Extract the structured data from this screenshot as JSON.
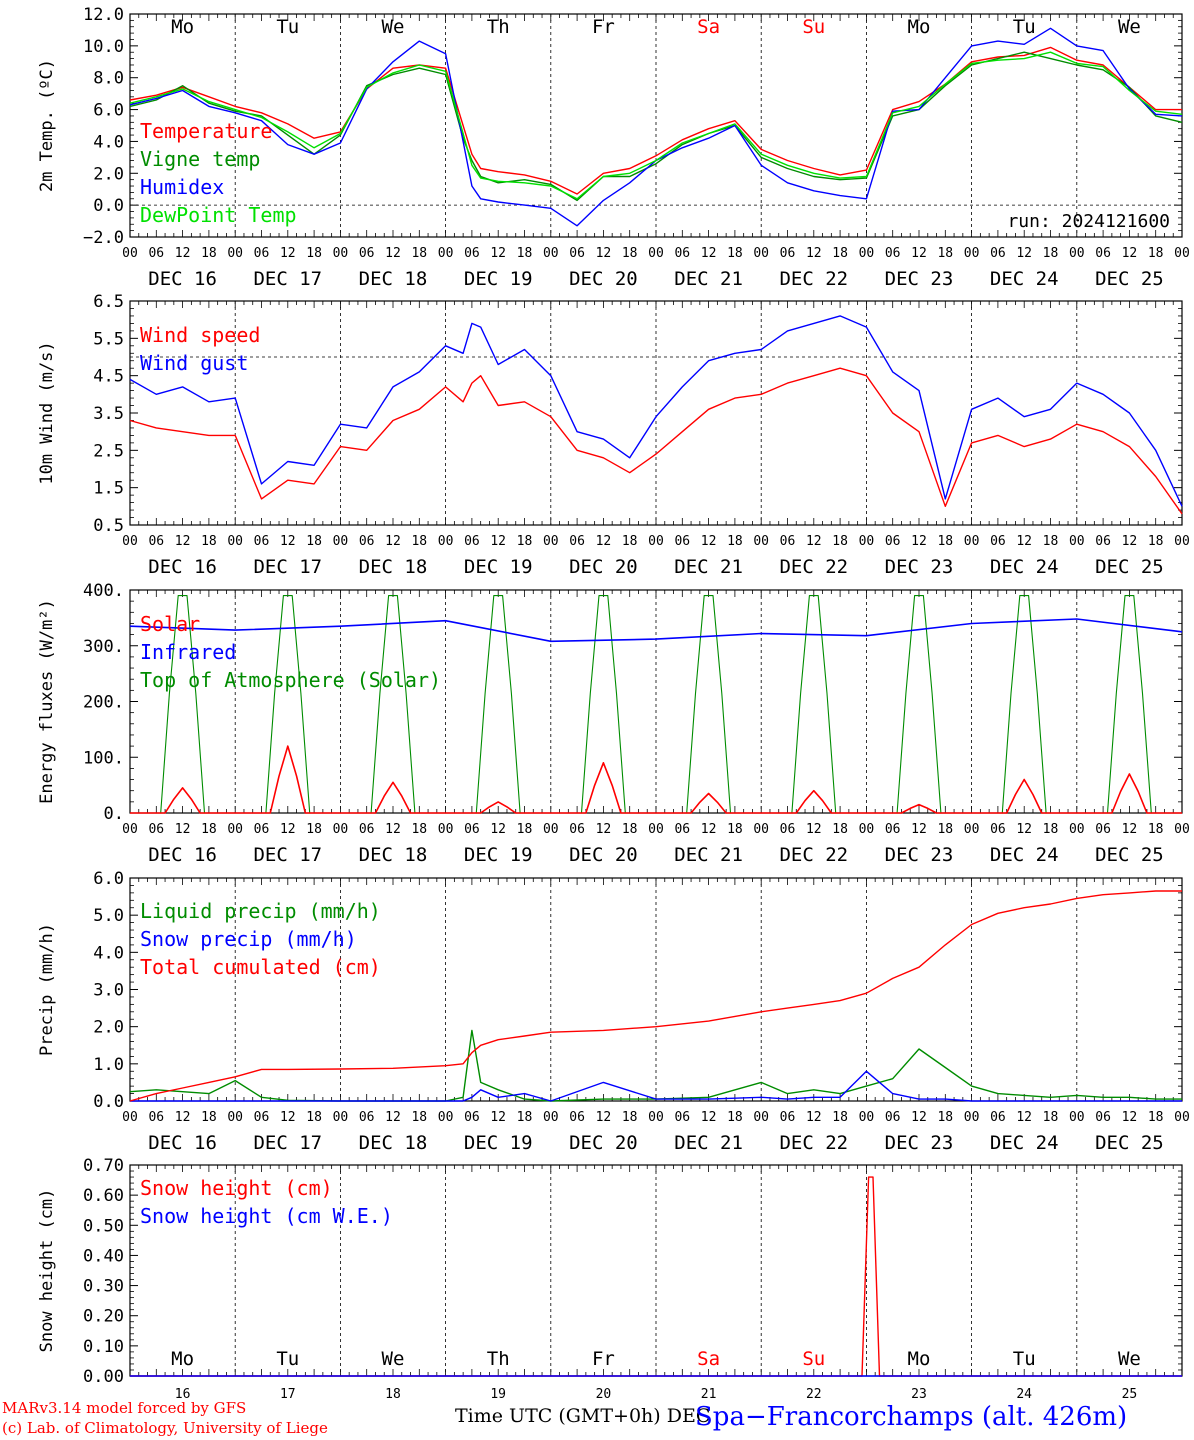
{
  "colors": {
    "red": "#ff0000",
    "green": "#008c00",
    "blue": "#0000ff",
    "lime": "#00e000",
    "weekend": "#ff0000",
    "grid": "#000000"
  },
  "days": {
    "names": [
      "Mo",
      "Tu",
      "We",
      "Th",
      "Fr",
      "Sa",
      "Su",
      "Mo",
      "Tu",
      "We"
    ],
    "weekend": [
      false,
      false,
      false,
      false,
      false,
      true,
      true,
      false,
      false,
      false
    ],
    "date_labels": [
      "DEC 16",
      "DEC 17",
      "DEC 18",
      "DEC 19",
      "DEC 20",
      "DEC 21",
      "DEC 22",
      "DEC 23",
      "DEC 24",
      "DEC 25"
    ],
    "day_numbers": [
      "16",
      "17",
      "18",
      "19",
      "20",
      "21",
      "22",
      "23",
      "24",
      "25"
    ],
    "hour_ticks": [
      "00",
      "06",
      "12",
      "18"
    ],
    "hour_end": "00"
  },
  "chart_data": [
    {
      "type": "line",
      "ylabel": "2m Temp. (ºC)",
      "ylim": [
        -2,
        12
      ],
      "yticks": [
        "12.0",
        "10.0",
        "8.0",
        "6.0",
        "4.0",
        "2.0",
        "0.0",
        "−2.0"
      ],
      "ytick_values": [
        12,
        10,
        8,
        6,
        4,
        2,
        0,
        -2
      ],
      "ref_line": 0,
      "run_label": "run: 2024121600",
      "x_hours": [
        0,
        6,
        12,
        18,
        24,
        30,
        36,
        42,
        48,
        54,
        60,
        66,
        72,
        76,
        78,
        80,
        84,
        90,
        96,
        102,
        108,
        114,
        120,
        126,
        132,
        138,
        144,
        150,
        156,
        162,
        168,
        174,
        180,
        186,
        192,
        198,
        204,
        210,
        216,
        222,
        228,
        234,
        240
      ],
      "series": [
        {
          "name": "Temperature",
          "color": "red",
          "values": [
            6.6,
            6.9,
            7.4,
            6.8,
            6.2,
            5.8,
            5.1,
            4.2,
            4.6,
            7.3,
            8.6,
            8.8,
            8.6,
            5.0,
            3.2,
            2.3,
            2.1,
            1.9,
            1.5,
            0.7,
            2.0,
            2.3,
            3.1,
            4.1,
            4.8,
            5.3,
            3.5,
            2.8,
            2.3,
            1.9,
            2.2,
            6.0,
            6.5,
            7.6,
            9.0,
            9.3,
            9.4,
            9.9,
            9.1,
            8.8,
            7.4,
            6.0,
            6.0
          ]
        },
        {
          "name": "Vigne temp",
          "color": "green",
          "values": [
            6.2,
            6.6,
            7.5,
            6.4,
            5.9,
            5.6,
            4.4,
            3.2,
            4.4,
            7.5,
            8.2,
            8.6,
            8.2,
            4.2,
            2.8,
            1.8,
            1.4,
            1.6,
            1.3,
            0.3,
            1.8,
            1.8,
            2.6,
            3.8,
            4.5,
            5.0,
            3.0,
            2.3,
            1.8,
            1.6,
            1.7,
            5.6,
            6.0,
            7.5,
            8.8,
            9.2,
            9.6,
            9.2,
            8.8,
            8.5,
            7.4,
            5.6,
            5.2
          ]
        },
        {
          "name": "Humidex",
          "color": "blue",
          "values": [
            6.3,
            6.7,
            7.2,
            6.2,
            5.8,
            5.3,
            3.8,
            3.2,
            3.9,
            7.3,
            9.0,
            10.3,
            9.5,
            4.0,
            1.2,
            0.4,
            0.2,
            0.0,
            -0.2,
            -1.3,
            0.3,
            1.4,
            2.8,
            3.6,
            4.2,
            5.0,
            2.5,
            1.4,
            0.9,
            0.6,
            0.4,
            5.9,
            6.0,
            8.0,
            10.0,
            10.3,
            10.1,
            11.1,
            10.0,
            9.7,
            7.3,
            5.7,
            5.6
          ]
        },
        {
          "name": "DewPoint Temp",
          "color": "lime",
          "values": [
            6.4,
            6.8,
            7.3,
            6.5,
            6.0,
            5.5,
            4.6,
            3.6,
            4.5,
            7.4,
            8.3,
            8.8,
            8.4,
            4.5,
            2.5,
            1.7,
            1.5,
            1.4,
            1.2,
            0.4,
            1.8,
            2.0,
            2.8,
            3.9,
            4.5,
            5.1,
            3.2,
            2.5,
            2.0,
            1.7,
            1.8,
            5.8,
            6.2,
            7.6,
            8.9,
            9.1,
            9.2,
            9.6,
            8.9,
            8.7,
            7.2,
            5.9,
            5.7
          ]
        }
      ]
    },
    {
      "type": "line",
      "ylabel": "10m Wind (m/s)",
      "ylim": [
        0.5,
        6.5
      ],
      "yticks": [
        "6.5",
        "5.5",
        "4.5",
        "3.5",
        "2.5",
        "1.5",
        "0.5"
      ],
      "ytick_values": [
        6.5,
        5.5,
        4.5,
        3.5,
        2.5,
        1.5,
        0.5
      ],
      "ref_line": 5.0,
      "x_hours": [
        0,
        6,
        12,
        18,
        24,
        30,
        36,
        42,
        48,
        54,
        60,
        66,
        72,
        76,
        78,
        80,
        84,
        90,
        96,
        102,
        108,
        114,
        120,
        126,
        132,
        138,
        144,
        150,
        156,
        162,
        168,
        174,
        180,
        186,
        192,
        198,
        204,
        210,
        216,
        222,
        228,
        234,
        240
      ],
      "series": [
        {
          "name": "Wind speed",
          "color": "red",
          "values": [
            3.3,
            3.1,
            3.0,
            2.9,
            2.9,
            1.2,
            1.7,
            1.6,
            2.6,
            2.5,
            3.3,
            3.6,
            4.2,
            3.8,
            4.3,
            4.5,
            3.7,
            3.8,
            3.4,
            2.5,
            2.3,
            1.9,
            2.4,
            3.0,
            3.6,
            3.9,
            4.0,
            4.3,
            4.5,
            4.7,
            4.5,
            3.5,
            3.0,
            1.0,
            2.7,
            2.9,
            2.6,
            2.8,
            3.2,
            3.0,
            2.6,
            1.8,
            0.8
          ]
        },
        {
          "name": "Wind gust",
          "color": "blue",
          "values": [
            4.4,
            4.0,
            4.2,
            3.8,
            3.9,
            1.6,
            2.2,
            2.1,
            3.2,
            3.1,
            4.2,
            4.6,
            5.3,
            5.1,
            5.9,
            5.8,
            4.8,
            5.2,
            4.5,
            3.0,
            2.8,
            2.3,
            3.4,
            4.2,
            4.9,
            5.1,
            5.2,
            5.7,
            5.9,
            6.1,
            5.8,
            4.6,
            4.1,
            1.2,
            3.6,
            3.9,
            3.4,
            3.6,
            4.3,
            4.0,
            3.5,
            2.5,
            1.0
          ]
        }
      ]
    },
    {
      "type": "line",
      "ylabel": "Energy fluxes (W/m²)",
      "ylim": [
        0,
        400
      ],
      "yticks": [
        "400.",
        "300.",
        "200.",
        "100.",
        "0."
      ],
      "ytick_values": [
        400,
        300,
        200,
        100,
        0
      ],
      "diurnal_days": [
        0,
        1,
        2,
        3,
        4,
        5,
        6,
        7,
        8,
        9
      ],
      "solar_peaks": [
        45,
        120,
        55,
        20,
        90,
        35,
        40,
        15,
        60,
        70
      ],
      "toa_peak": 390,
      "infrared": {
        "x_hours": [
          0,
          24,
          48,
          72,
          96,
          120,
          144,
          168,
          192,
          216,
          240
        ],
        "values": [
          335,
          328,
          335,
          345,
          308,
          312,
          322,
          318,
          340,
          348,
          325
        ]
      },
      "series": [
        {
          "name": "Solar",
          "color": "red"
        },
        {
          "name": "Infrared",
          "color": "blue"
        },
        {
          "name": "Top of Atmosphere (Solar)",
          "color": "green"
        }
      ]
    },
    {
      "type": "line",
      "ylabel": "Precip (mm/h)",
      "ylim": [
        0,
        6
      ],
      "yticks": [
        "6.0",
        "5.0",
        "4.0",
        "3.0",
        "2.0",
        "1.0",
        "0.0"
      ],
      "ytick_values": [
        6,
        5,
        4,
        3,
        2,
        1,
        0
      ],
      "x_hours": [
        0,
        6,
        12,
        18,
        24,
        30,
        36,
        48,
        60,
        72,
        76,
        78,
        80,
        84,
        90,
        96,
        108,
        120,
        132,
        144,
        150,
        156,
        162,
        168,
        174,
        180,
        186,
        192,
        198,
        204,
        210,
        216,
        222,
        228,
        234,
        240
      ],
      "series": [
        {
          "name": "Liquid precip (mm/h)",
          "color": "green",
          "values": [
            0.25,
            0.3,
            0.25,
            0.2,
            0.55,
            0.1,
            0.02,
            0.0,
            0.0,
            0.0,
            0.1,
            1.9,
            0.5,
            0.3,
            0.05,
            0.0,
            0.05,
            0.05,
            0.1,
            0.5,
            0.2,
            0.3,
            0.2,
            0.4,
            0.6,
            1.4,
            0.9,
            0.4,
            0.2,
            0.15,
            0.1,
            0.15,
            0.1,
            0.1,
            0.05,
            0.05
          ]
        },
        {
          "name": "Snow precip (mm/h)",
          "color": "blue",
          "values": [
            0,
            0,
            0,
            0,
            0,
            0,
            0,
            0,
            0,
            0,
            0,
            0.1,
            0.3,
            0.1,
            0.2,
            0,
            0.5,
            0.05,
            0.05,
            0.1,
            0.05,
            0.1,
            0.1,
            0.8,
            0.2,
            0.05,
            0.05,
            0.0,
            0,
            0,
            0,
            0,
            0,
            0,
            0,
            0
          ]
        },
        {
          "name": "Total cumulated (cm)",
          "color": "red",
          "values": [
            0.0,
            0.2,
            0.35,
            0.5,
            0.65,
            0.85,
            0.85,
            0.86,
            0.88,
            0.95,
            1.0,
            1.3,
            1.5,
            1.65,
            1.75,
            1.85,
            1.9,
            2.0,
            2.15,
            2.4,
            2.5,
            2.6,
            2.7,
            2.9,
            3.3,
            3.6,
            4.2,
            4.75,
            5.05,
            5.2,
            5.3,
            5.45,
            5.55,
            5.6,
            5.65,
            5.65
          ]
        }
      ]
    },
    {
      "type": "line",
      "ylabel": "Snow height (cm)",
      "ylim": [
        0,
        0.7
      ],
      "yticks": [
        "0.70",
        "0.60",
        "0.50",
        "0.40",
        "0.30",
        "0.20",
        "0.10",
        "0.00"
      ],
      "ytick_values": [
        0.7,
        0.6,
        0.5,
        0.4,
        0.3,
        0.2,
        0.1,
        0
      ],
      "x_hours": [
        0,
        167,
        168.5,
        169.5,
        171,
        240
      ],
      "series": [
        {
          "name": "Snow height (cm)",
          "color": "red",
          "values": [
            0,
            0,
            0.66,
            0.66,
            0,
            0
          ]
        },
        {
          "name": "Snow height (cm W.E.)",
          "color": "blue",
          "values": [
            0,
            0,
            0,
            0,
            0,
            0
          ]
        }
      ]
    }
  ],
  "footer": {
    "model_line": "MARv3.14 model forced by GFS",
    "lab_line": "(c) Lab. of Climatology, University of Liege",
    "xlabel": "Time UTC (GMT+0h) DEC",
    "station": "Spa−Francorchamps (alt. 426m)"
  }
}
